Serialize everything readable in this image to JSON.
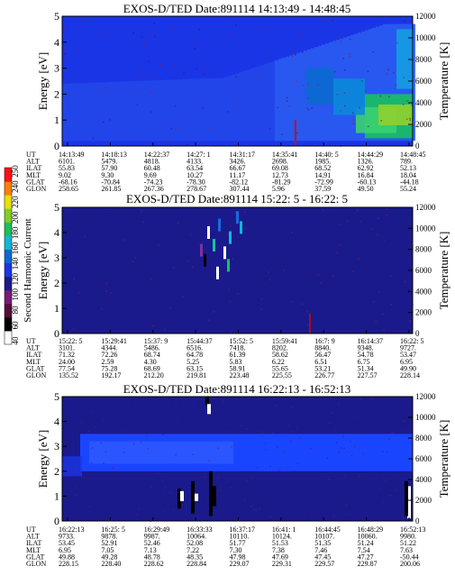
{
  "chart_data": [
    {
      "type": "heatmap",
      "title": "EXOS-D/TED  Date:891114  14:13:49 - 14:48:45",
      "ylabel": "Energy [eV]",
      "y2label": "Temperature [K]",
      "ylim": [
        0,
        5
      ],
      "y2lim": [
        0,
        12000
      ],
      "yticks": [
        "0",
        "1",
        "2",
        "3",
        "4",
        "5"
      ],
      "y2ticks": [
        "0",
        "2000",
        "4000",
        "6000",
        "8000",
        "10000",
        "12000"
      ],
      "background_color": "#1a35e6",
      "features": [
        "upper-boundary-rising-toward-end",
        "green-red-high-intensity-at-low-energy-end"
      ],
      "table": {
        "labels": [
          "UT",
          "ALT",
          "ILAT",
          "MLT",
          "GLAT",
          "GLON"
        ],
        "rows": [
          [
            "14:13:49",
            "14:18:13",
            "14:22:37",
            "14:27: 1",
            "14:31:17",
            "14:35:41",
            "14:40: 5",
            "14:44:29",
            "14:48:45"
          ],
          [
            "6101.",
            "5479.",
            "4818.",
            "4133.",
            "3426.",
            "2698.",
            "1985.",
            "1326.",
            "789."
          ],
          [
            "55.83",
            "57.90",
            "60.48",
            "63.54",
            "66.67",
            "69.08",
            "68.52",
            "62.92",
            "52.13"
          ],
          [
            "9.02",
            "9.30",
            "9.69",
            "10.27",
            "11.17",
            "12.73",
            "14.91",
            "16.84",
            "18.04"
          ],
          [
            "-68.16",
            "-70.84",
            "-74.23",
            "-78.30",
            "-82.12",
            "-81.29",
            "-72.99",
            "-60.13",
            "-44.18"
          ],
          [
            "258.65",
            "261.85",
            "267.36",
            "278.67",
            "307.44",
            "5.96",
            "37.59",
            "49.50",
            "55.24"
          ]
        ]
      }
    },
    {
      "type": "heatmap",
      "title": "EXOS-D/TED   Date:891114  15:22: 5 - 16:22: 5",
      "ylabel": "Energy [eV]",
      "y2label": "Temperature [K]",
      "ylim": [
        0,
        5
      ],
      "y2lim": [
        0,
        12000
      ],
      "yticks": [
        "0",
        "1",
        "2",
        "3",
        "4",
        "5"
      ],
      "y2ticks": [
        "0",
        "2000",
        "4000",
        "6000",
        "8000",
        "10000",
        "12000"
      ],
      "background_color": "#1a1a8c",
      "features": [
        "scattered-bursts-near-15:45-16:00"
      ],
      "table": {
        "labels": [
          "UT",
          "ALT",
          "ILAT",
          "MLT",
          "GLAT",
          "GLON"
        ],
        "rows": [
          [
            "15:22: 5",
            "15:29:41",
            "15:37: 9",
            "15:44:37",
            "15:52: 5",
            "15:59:41",
            "16:7: 9",
            "16:14:37",
            "16:22: 5"
          ],
          [
            "3101.",
            "4344.",
            "5486.",
            "6516.",
            "7418.",
            "8202.",
            "8840.",
            "9348.",
            "9727."
          ],
          [
            "71.32",
            "72.26",
            "68.74",
            "64.78",
            "61.39",
            "58.62",
            "56.47",
            "54.78",
            "53.47"
          ],
          [
            "24.00",
            "2.59",
            "4.30",
            "5.25",
            "5.83",
            "6.22",
            "6.51",
            "6.75",
            "6.95"
          ],
          [
            "77.54",
            "75.28",
            "68.69",
            "63.15",
            "58.91",
            "55.65",
            "53.21",
            "51.34",
            "49.90"
          ],
          [
            "135.52",
            "192.17",
            "212.20",
            "219.81",
            "223.48",
            "225.55",
            "226.77",
            "227.57",
            "228.14"
          ]
        ]
      }
    },
    {
      "type": "heatmap",
      "title": "EXOS-D/TED   Date:891114  16:22:13 - 16:52:13",
      "ylabel": "Energy [eV]",
      "y2label": "Temperature [K]",
      "ylim": [
        0,
        5
      ],
      "y2lim": [
        0,
        12000
      ],
      "yticks": [
        "0",
        "1",
        "2",
        "3",
        "4",
        "5"
      ],
      "y2ticks": [
        "0",
        "2000",
        "4000",
        "6000",
        "8000",
        "10000",
        "12000"
      ],
      "background_color": "#1a1a8c",
      "features": [
        "bright-blue-band-between-2-and-3.5-eV",
        "bursts-near-16:33"
      ],
      "table": {
        "labels": [
          "UT",
          "ALT",
          "ILAT",
          "MLT",
          "GLAT",
          "GLON"
        ],
        "rows": [
          [
            "16:22:13",
            "16:25: 5",
            "16:29:49",
            "16:33:33",
            "16:37:17",
            "16:41: 1",
            "16:44:45",
            "16:48:29",
            "16:52:13"
          ],
          [
            "9733.",
            "9878.",
            "9987.",
            "10064.",
            "10110.",
            "10124.",
            "10107.",
            "10060.",
            "9980."
          ],
          [
            "53.45",
            "52.91",
            "52.46",
            "52.08",
            "51.77",
            "51.53",
            "51.35",
            "51.24",
            "51.22"
          ],
          [
            "6.95",
            "7.05",
            "7.13",
            "7.22",
            "7.30",
            "7.38",
            "7.46",
            "7.54",
            "7.63"
          ],
          [
            "49.88",
            "49.28",
            "48.78",
            "48.35",
            "47.98",
            "47.69",
            "47.45",
            "47.27",
            "-50.44"
          ],
          [
            "228.15",
            "228.40",
            "228.62",
            "228.84",
            "229.07",
            "229.31",
            "229.57",
            "229.87",
            "200.06"
          ]
        ]
      }
    }
  ],
  "colorbar": {
    "label": "Second Harmonic Current",
    "ticks": [
      "40",
      "60",
      "80",
      "100",
      "120",
      "140",
      "160",
      "180",
      "200",
      "220",
      "240",
      "250"
    ],
    "colors": [
      "#ffffff",
      "#000000",
      "#5a0a3c",
      "#7a1a7a",
      "#1a1a8c",
      "#1a35e6",
      "#0a6ad0",
      "#10b8d8",
      "#18c060",
      "#80d020",
      "#e8e000",
      "#ff8000",
      "#ff1010"
    ]
  }
}
